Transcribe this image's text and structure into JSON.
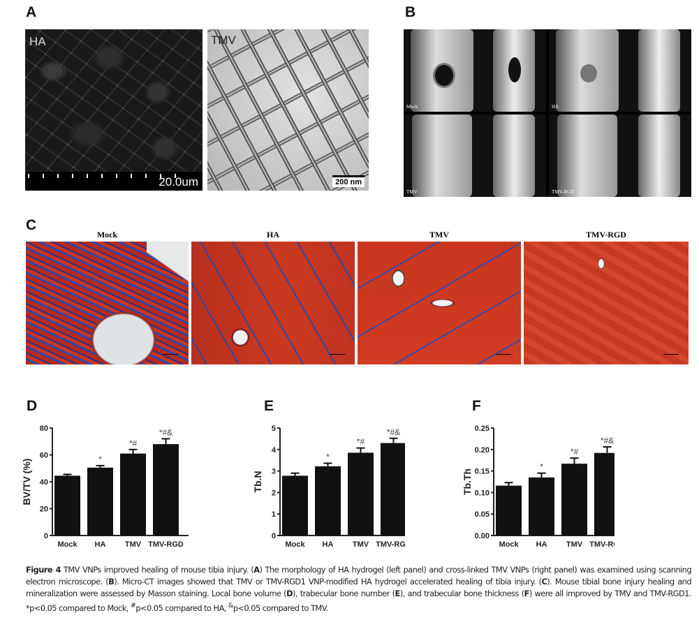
{
  "panels": {
    "a": "A",
    "b": "B",
    "c": "C",
    "d": "D",
    "e": "E",
    "f": "F"
  },
  "panel_a": {
    "sem_label": "HA",
    "sem_scale": "20.0um",
    "tem_label": "TMV",
    "tem_scale": "200 nm"
  },
  "panel_b": {
    "labels": [
      "Mock",
      "HA",
      "TMV",
      "TMV-RGD"
    ]
  },
  "panel_c": {
    "titles": [
      "Mock",
      "HA",
      "TMV",
      "TMV-RGD"
    ]
  },
  "chart_data": [
    {
      "type": "bar",
      "panel": "D",
      "categories": [
        "Mock",
        "HA",
        "TMV",
        "TMV-RGD"
      ],
      "values": [
        44.5,
        50.5,
        61,
        68
      ],
      "errors": [
        1,
        1.5,
        3,
        4
      ],
      "annotations": [
        "",
        "*",
        "*#",
        "*#&"
      ],
      "ylabel": "BV/TV (%)",
      "ylim": [
        0,
        80
      ],
      "yticks": [
        "0",
        "20",
        "40",
        "60",
        "80"
      ],
      "color": "#111111"
    },
    {
      "type": "bar",
      "panel": "E",
      "categories": [
        "Mock",
        "HA",
        "TMV",
        "TMV-RGD"
      ],
      "values": [
        2.78,
        3.22,
        3.85,
        4.3
      ],
      "errors": [
        0.12,
        0.14,
        0.22,
        0.22
      ],
      "annotations": [
        "",
        "*",
        "*#",
        "*#&"
      ],
      "ylabel": "Tb.N",
      "ylim": [
        0,
        5
      ],
      "yticks": [
        "0",
        "1",
        "2",
        "3",
        "4",
        "5"
      ],
      "color": "#111111"
    },
    {
      "type": "bar",
      "panel": "F",
      "categories": [
        "Mock",
        "HA",
        "TMV",
        "TMV-RGD"
      ],
      "values": [
        0.116,
        0.135,
        0.167,
        0.192
      ],
      "errors": [
        0.007,
        0.01,
        0.013,
        0.014
      ],
      "annotations": [
        "",
        "*",
        "*#",
        "*#&"
      ],
      "ylabel": "Tb.Th",
      "ylim": [
        0,
        0.25
      ],
      "yticks": [
        "0.00",
        "0.05",
        "0.10",
        "0.15",
        "0.20",
        "0.25"
      ],
      "color": "#111111"
    }
  ],
  "caption": {
    "fig": "Figure 4",
    "t1": " TMV VNPs improved healing of mouse tibia injury. (",
    "A": "A",
    "t2": ") The morphology of HA hydrogel (left panel) and cross-linked TMV VNPs (right panel) was examined using scanning electron microscope. (",
    "B": "B",
    "t3": "). Micro-CT images showed that TMV or TMV-RGD1 VNP-modified HA hydrogel accelerated healing of tibia injury. (",
    "C": "C",
    "t4": "). Mouse tibial bone injury healing and mineralization were assessed by Masson staining. Local bone volume (",
    "D": "D",
    "t5": "), trabecular bone number (",
    "E": "E",
    "t6": "), and trabecular bone thickness (",
    "F": "F",
    "t7": ") were all improved by TMV and TMV-RGD1. *p<0.05 compared to Mock, ",
    "hash": "#",
    "t8": "p<0.05 compared to HA, ",
    "amp": "&",
    "t9": "p<0.05 compared to TMV."
  }
}
